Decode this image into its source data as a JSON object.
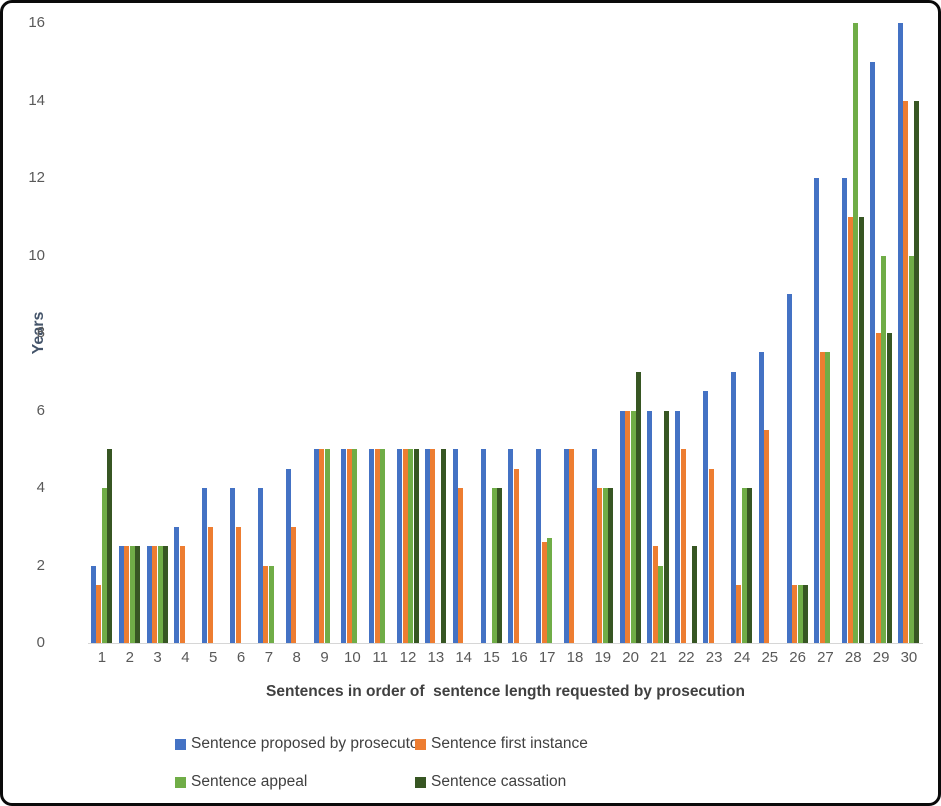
{
  "chart_data": {
    "type": "bar",
    "title": "",
    "xlabel": "Sentences in order of  sentence length requested by prosecution",
    "ylabel": "Years",
    "ylim": [
      0,
      16
    ],
    "ytick_step": 2,
    "grid": false,
    "legend_position": "bottom",
    "axis_text_color": "#595959",
    "axis_title_color": "#44546a",
    "categories": [
      "1",
      "2",
      "3",
      "4",
      "5",
      "6",
      "7",
      "8",
      "9",
      "10",
      "11",
      "12",
      "13",
      "14",
      "15",
      "16",
      "17",
      "18",
      "19",
      "20",
      "21",
      "22",
      "23",
      "24",
      "25",
      "26",
      "27",
      "28",
      "29",
      "30"
    ],
    "series": [
      {
        "name": "Sentence proposed by prosecutor",
        "color": "#4472C4",
        "values": [
          2,
          2.5,
          2.5,
          3,
          4,
          4,
          4,
          4.5,
          5,
          5,
          5,
          5,
          5,
          5,
          5,
          5,
          5,
          5,
          5,
          6,
          6,
          6,
          6.5,
          7,
          7.5,
          9,
          12,
          12,
          15,
          16
        ]
      },
      {
        "name": "Sentence first instance",
        "color": "#ED7D31",
        "values": [
          1.5,
          2.5,
          2.5,
          2.5,
          3,
          3,
          2,
          3,
          5,
          5,
          5,
          5,
          5,
          4,
          0,
          4.5,
          2.6,
          5,
          4,
          6,
          2.5,
          5,
          4.5,
          1.5,
          5.5,
          1.5,
          7.5,
          11,
          8,
          14
        ]
      },
      {
        "name": "Sentence appeal",
        "color": "#70AD47",
        "values": [
          4,
          2.5,
          2.5,
          0,
          0,
          0,
          2,
          0,
          5,
          5,
          5,
          5,
          0,
          0,
          4,
          0,
          2.7,
          0,
          4,
          6,
          2,
          0,
          0,
          4,
          0,
          1.5,
          7.5,
          16,
          10,
          10
        ]
      },
      {
        "name": "Sentence cassation",
        "color": "#375623",
        "values": [
          5,
          2.5,
          2.5,
          0,
          0,
          0,
          0,
          0,
          0,
          0,
          0,
          5,
          5,
          0,
          4,
          0,
          0,
          0,
          4,
          7,
          6,
          2.5,
          0,
          4,
          0,
          1.5,
          0,
          11,
          8,
          14
        ]
      }
    ]
  }
}
